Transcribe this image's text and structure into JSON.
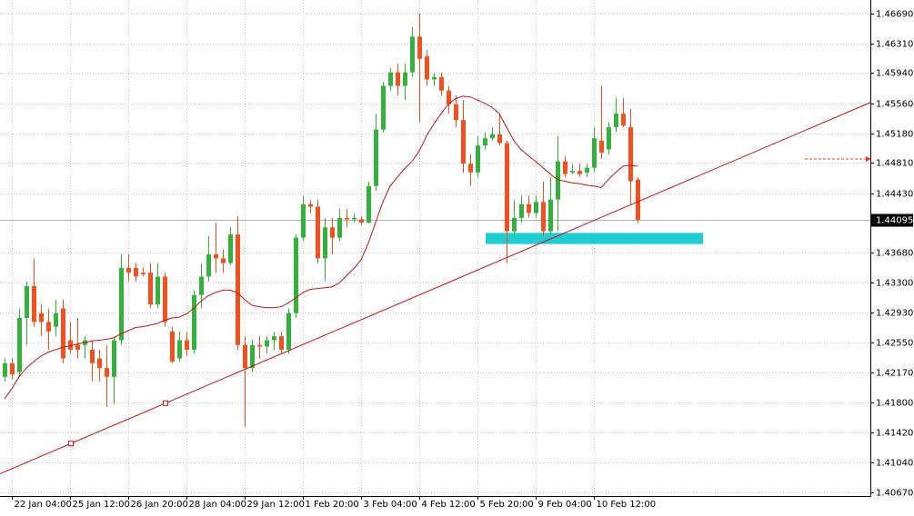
{
  "chart_data": {
    "type": "candlestick",
    "categories": [
      null,
      "22 Jan 04:00",
      null,
      null,
      null,
      null,
      null,
      null,
      null,
      "25 Jan 12:00",
      null,
      null,
      null,
      null,
      null,
      null,
      null,
      "26 Jan 20:00",
      null,
      null,
      null,
      null,
      null,
      null,
      null,
      "28 Jan 04:00",
      null,
      null,
      null,
      null,
      null,
      null,
      null,
      "29 Jan 12:00",
      null,
      null,
      null,
      null,
      null,
      null,
      null,
      "1 Feb 20:00",
      null,
      null,
      null,
      null,
      null,
      null,
      null,
      "3 Feb 04:00",
      null,
      null,
      null,
      null,
      null,
      null,
      null,
      "4 Feb 12:00",
      null,
      null,
      null,
      null,
      null,
      null,
      null,
      "5 Feb 20:00",
      null,
      null,
      null,
      null,
      null,
      null,
      null,
      "9 Feb 04:00",
      null,
      null,
      null,
      null,
      null,
      null,
      null,
      "10 Feb 12:00",
      null,
      null,
      null,
      null,
      null,
      null
    ],
    "open": [
      1.4212,
      1.4229,
      1.4218,
      1.4286,
      1.4326,
      1.4292,
      1.4281,
      1.4275,
      1.4298,
      1.4258,
      1.4252,
      1.4252,
      1.4246,
      1.4235,
      1.4223,
      1.4212,
      1.4258,
      1.4349,
      1.4349,
      1.4343,
      1.4343,
      1.4303,
      1.4338,
      1.4269,
      1.4235,
      1.4258,
      1.4246,
      1.4315,
      1.4338,
      1.4366,
      1.4361,
      1.4355,
      1.4391,
      1.4252,
      1.4223,
      1.4252,
      1.425,
      1.4258,
      1.4263,
      1.4246,
      1.4292,
      1.4387,
      1.4429,
      1.4426,
      1.4361,
      1.44,
      1.4387,
      1.4412,
      1.441,
      1.441,
      1.4406,
      1.4452,
      1.4523,
      1.4578,
      1.4595,
      1.4578,
      1.4595,
      1.464,
      1.4615,
      1.4586,
      1.4589,
      1.4572,
      1.4555,
      1.4535,
      1.448,
      1.4469,
      1.4503,
      1.4512,
      1.4517,
      1.4506,
      1.4395,
      1.4412,
      1.4429,
      1.4418,
      1.4432,
      1.4395,
      1.4435,
      1.4483,
      1.4469,
      1.4471,
      1.4469,
      1.4475,
      1.4509,
      1.4498,
      1.4526,
      1.4543,
      1.4526,
      1.446
    ],
    "high": [
      1.4235,
      1.4235,
      1.4298,
      1.4332,
      1.4361,
      1.4303,
      1.4298,
      1.4309,
      1.4309,
      1.4281,
      1.4286,
      1.4263,
      1.4258,
      1.4246,
      1.4252,
      1.4263,
      1.4366,
      1.4366,
      1.4355,
      1.4349,
      1.4355,
      1.4355,
      1.4343,
      1.4275,
      1.4269,
      1.4269,
      1.4321,
      1.4355,
      1.4389,
      1.4406,
      1.4372,
      1.44,
      1.4414,
      1.4263,
      1.4258,
      1.4263,
      1.4263,
      1.4269,
      1.4269,
      1.4298,
      1.4391,
      1.444,
      1.4435,
      1.4435,
      1.4412,
      1.4412,
      1.4423,
      1.4423,
      1.4418,
      1.4414,
      1.4458,
      1.4543,
      1.4583,
      1.46,
      1.4606,
      1.4606,
      1.4652,
      1.4669,
      1.4623,
      1.4595,
      1.4595,
      1.4578,
      1.4566,
      1.456,
      1.4492,
      1.4515,
      1.452,
      1.4526,
      1.4543,
      1.4509,
      1.4435,
      1.444,
      1.444,
      1.444,
      1.4458,
      1.4463,
      1.4515,
      1.449,
      1.448,
      1.448,
      1.448,
      1.4526,
      1.4578,
      1.4532,
      1.4563,
      1.4563,
      1.4549,
      1.4463
    ],
    "low": [
      1.4206,
      1.4209,
      1.4212,
      1.4252,
      1.4275,
      1.4263,
      1.4246,
      1.4263,
      1.4229,
      1.4241,
      1.4235,
      1.4235,
      1.4206,
      1.4206,
      1.4174,
      1.4178,
      1.4252,
      1.4332,
      1.4332,
      1.4338,
      1.4298,
      1.4298,
      1.4275,
      1.4229,
      1.4231,
      1.4238,
      1.4241,
      1.4298,
      1.4332,
      1.4343,
      1.4343,
      1.4353,
      1.4246,
      1.4149,
      1.4218,
      1.4235,
      1.4241,
      1.4246,
      1.4241,
      1.4241,
      1.4286,
      1.4383,
      1.4418,
      1.4355,
      1.4332,
      1.4366,
      1.4383,
      1.44,
      1.4406,
      1.4403,
      1.4405,
      1.4446,
      1.452,
      1.4572,
      1.4566,
      1.456,
      1.4589,
      1.4532,
      1.4578,
      1.4578,
      1.4566,
      1.4543,
      1.4526,
      1.4469,
      1.4452,
      1.4463,
      1.4498,
      1.4509,
      1.4503,
      1.4355,
      1.4387,
      1.4406,
      1.4412,
      1.4412,
      1.4389,
      1.4391,
      1.4395,
      1.4463,
      1.4467,
      1.4463,
      1.4463,
      1.4469,
      1.4486,
      1.4492,
      1.452,
      1.4526,
      1.4429,
      1.4405
    ],
    "close": [
      1.4229,
      1.4215,
      1.4286,
      1.4326,
      1.4281,
      1.4281,
      1.4269,
      1.4292,
      1.4235,
      1.4246,
      1.4246,
      1.4258,
      1.4229,
      1.4223,
      1.4212,
      1.4258,
      1.4349,
      1.4343,
      1.4338,
      1.4341,
      1.4303,
      1.4338,
      1.4281,
      1.4231,
      1.4258,
      1.4246,
      1.4315,
      1.4338,
      1.4366,
      1.4361,
      1.4355,
      1.4391,
      1.4252,
      1.4223,
      1.4252,
      1.425,
      1.4258,
      1.4263,
      1.4246,
      1.4292,
      1.4387,
      1.4429,
      1.4426,
      1.4361,
      1.44,
      1.4387,
      1.4412,
      1.441,
      1.4412,
      1.4406,
      1.4452,
      1.4523,
      1.4578,
      1.4595,
      1.4578,
      1.4595,
      1.464,
      1.4612,
      1.4586,
      1.4589,
      1.4572,
      1.4555,
      1.4535,
      1.448,
      1.4469,
      1.4503,
      1.4512,
      1.4517,
      1.4506,
      1.4395,
      1.4412,
      1.4429,
      1.4418,
      1.4432,
      1.4395,
      1.4435,
      1.4483,
      1.4467,
      1.4471,
      1.4467,
      1.4475,
      1.4512,
      1.4494,
      1.4526,
      1.4543,
      1.4528,
      1.4458,
      1.44095
    ],
    "up_color": "#34b03c",
    "down_color": "#f2501e",
    "ma": {
      "color": "#c81414",
      "values": [
        1.4184,
        1.4197,
        1.4212,
        1.4223,
        1.4231,
        1.4238,
        1.4243,
        1.4246,
        1.4249,
        1.4251,
        1.4253,
        1.4255,
        1.4257,
        1.4258,
        1.4259,
        1.4261,
        1.4266,
        1.427,
        1.4274,
        1.4275,
        1.4277,
        1.4279,
        1.4283,
        1.4286,
        1.4287,
        1.4291,
        1.4298,
        1.4307,
        1.4314,
        1.4318,
        1.4321,
        1.4321,
        1.4318,
        1.4309,
        1.4302,
        1.43,
        1.4299,
        1.4299,
        1.43,
        1.4305,
        1.4311,
        1.4318,
        1.4322,
        1.4323,
        1.4324,
        1.4325,
        1.433,
        1.4339,
        1.4348,
        1.4359,
        1.438,
        1.4406,
        1.4432,
        1.4452,
        1.4463,
        1.4474,
        1.4483,
        1.4496,
        1.4515,
        1.453,
        1.4543,
        1.4555,
        1.4562,
        1.4565,
        1.4564,
        1.456,
        1.4556,
        1.4551,
        1.4543,
        1.4526,
        1.4509,
        1.4498,
        1.449,
        1.4483,
        1.4475,
        1.4467,
        1.446,
        1.4458,
        1.4456,
        1.4455,
        1.4453,
        1.4452,
        1.445,
        1.446,
        1.4469,
        1.4477,
        1.4478,
        1.4477
      ]
    },
    "trend_line": {
      "color": "#d01010",
      "values": [
        1.409,
        1.4557
      ]
    },
    "zone": {
      "color": "#1fcdd3",
      "values": [
        1.4379,
        1.4393
      ]
    },
    "current_price": 1.44095,
    "ylim": [
      1.4062,
      1.4686
    ],
    "yticks": [
      {
        "value": 1.4669,
        "label": "1.46690"
      },
      {
        "value": 1.4631,
        "label": "1.46310"
      },
      {
        "value": 1.4594,
        "label": "1.45940"
      },
      {
        "value": 1.4556,
        "label": "1.45560"
      },
      {
        "value": 1.4518,
        "label": "1.45180"
      },
      {
        "value": 1.4481,
        "label": "1.44810"
      },
      {
        "value": 1.4443,
        "label": "1.44430"
      },
      {
        "value": 1.4368,
        "label": "1.43680"
      },
      {
        "value": 1.433,
        "label": "1.43300"
      },
      {
        "value": 1.4293,
        "label": "1.42930"
      },
      {
        "value": 1.4255,
        "label": "1.42550"
      },
      {
        "value": 1.4217,
        "label": "1.42170"
      },
      {
        "value": 1.418,
        "label": "1.41800"
      },
      {
        "value": 1.4142,
        "label": "1.41420"
      },
      {
        "value": 1.4104,
        "label": "1.41040"
      },
      {
        "value": 1.4067,
        "label": "1.40670"
      }
    ],
    "grid": true
  }
}
